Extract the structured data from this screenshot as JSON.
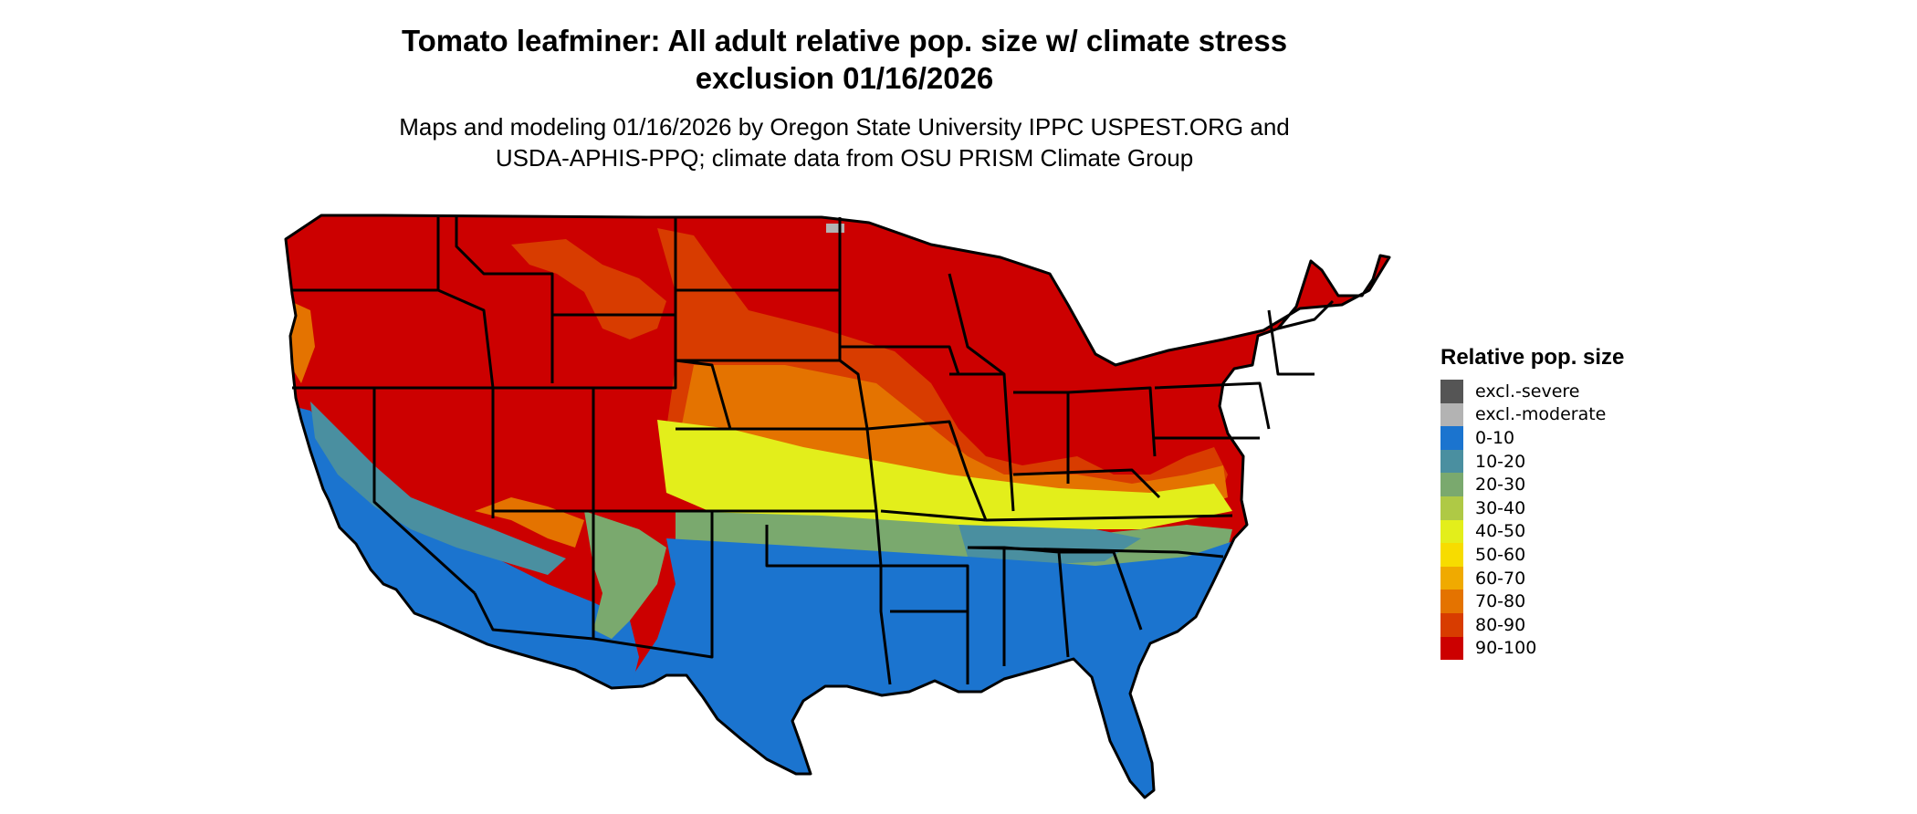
{
  "title_lines": [
    "Tomato leafminer: All adult relative pop. size w/ climate stress",
    "exclusion 01/16/2026"
  ],
  "subtitle_lines": [
    "Maps and modeling 01/16/2026 by Oregon State University IPPC USPEST.ORG and",
    "USDA-APHIS-PPQ; climate data from OSU PRISM Climate Group"
  ],
  "legend": {
    "title": "Relative pop. size",
    "items": [
      {
        "label": "excl.-severe",
        "color": "#555555"
      },
      {
        "label": "excl.-moderate",
        "color": "#b3b3b3"
      },
      {
        "label": "0-10",
        "color": "#1b74cf"
      },
      {
        "label": "10-20",
        "color": "#4a8fa0"
      },
      {
        "label": "20-30",
        "color": "#7aa96e"
      },
      {
        "label": "30-40",
        "color": "#afc945"
      },
      {
        "label": "40-50",
        "color": "#e3ee1b"
      },
      {
        "label": "50-60",
        "color": "#f7dc00"
      },
      {
        "label": "60-70",
        "color": "#f0aa00"
      },
      {
        "label": "70-80",
        "color": "#e47300"
      },
      {
        "label": "80-90",
        "color": "#d83c00"
      },
      {
        "label": "90-100",
        "color": "#cc0000"
      }
    ]
  }
}
